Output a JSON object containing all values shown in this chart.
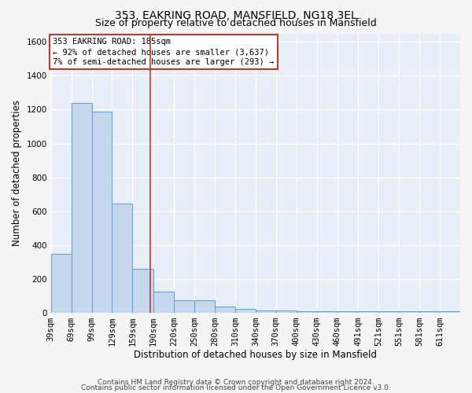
{
  "title1": "353, EAKRING ROAD, MANSFIELD, NG18 3EL",
  "title2": "Size of property relative to detached houses in Mansfield",
  "xlabel": "Distribution of detached houses by size in Mansfield",
  "ylabel": "Number of detached properties",
  "footer1": "Contains HM Land Registry data © Crown copyright and database right 2024.",
  "footer2": "Contains public sector information licensed under the Open Government Licence v3.0.",
  "annotation_line1": "353 EAKRING ROAD: 185sqm",
  "annotation_line2": "← 92% of detached houses are smaller (3,637)",
  "annotation_line3": "7% of semi-detached houses are larger (293) →",
  "property_size": 185,
  "bin_edges": [
    39,
    69,
    99,
    129,
    159,
    190,
    220,
    250,
    280,
    310,
    340,
    370,
    400,
    430,
    460,
    491,
    521,
    551,
    581,
    611,
    641
  ],
  "bin_counts": [
    350,
    1240,
    1190,
    645,
    260,
    125,
    75,
    75,
    35,
    25,
    15,
    15,
    10,
    10,
    10,
    10,
    10,
    10,
    10,
    10
  ],
  "bar_color": "#c5d8ee",
  "bar_edge_color": "#5b9bd5",
  "vline_color": "#c0392b",
  "vline_x": 185,
  "ylim": [
    0,
    1650
  ],
  "yticks": [
    0,
    200,
    400,
    600,
    800,
    1000,
    1200,
    1400,
    1600
  ],
  "bg_color": "#e8eef8",
  "annotation_box_color": "#ffffff",
  "annotation_box_edge": "#c0392b",
  "grid_color": "#ffffff",
  "title1_fontsize": 10,
  "title2_fontsize": 9,
  "xlabel_fontsize": 8.5,
  "ylabel_fontsize": 8.5,
  "annotation_fontsize": 7.5,
  "tick_fontsize": 7.5,
  "footer_fontsize": 6.5
}
